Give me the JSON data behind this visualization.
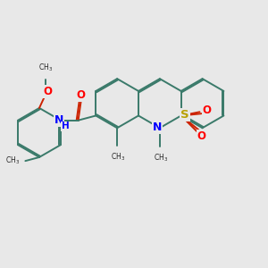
{
  "bg_color": "#e8e8e8",
  "bond_color": "#3a7a6a",
  "bond_width": 1.4,
  "dbo": 0.018,
  "figsize": [
    3.0,
    3.0
  ],
  "dpi": 100,
  "xlim": [
    0.2,
    3.0
  ],
  "ylim": [
    0.3,
    2.5
  ]
}
